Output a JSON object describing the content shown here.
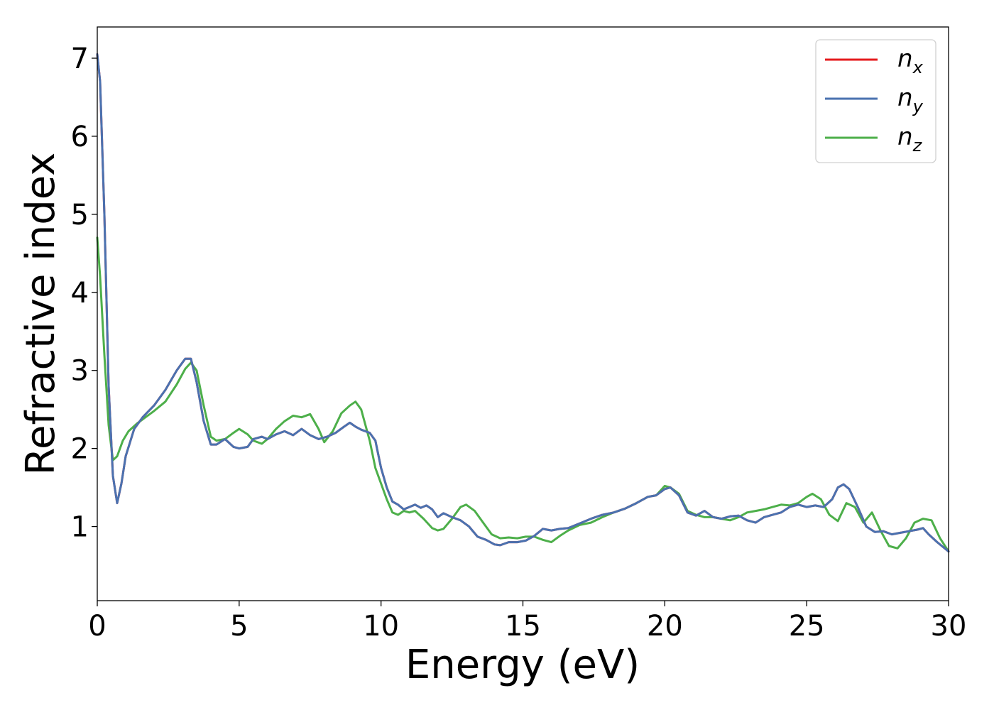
{
  "chart_data": {
    "type": "line",
    "title": "",
    "xlabel": "Energy (eV)",
    "ylabel": "Refractive index",
    "xlim": [
      0,
      30
    ],
    "ylim": [
      0.05,
      7.4
    ],
    "xticks": [
      0,
      5,
      10,
      15,
      20,
      25,
      30
    ],
    "xtick_labels": [
      "0",
      "5",
      "10",
      "15",
      "20",
      "25",
      "30"
    ],
    "yticks": [
      1,
      2,
      3,
      4,
      5,
      6,
      7
    ],
    "ytick_labels": [
      "1",
      "2",
      "3",
      "4",
      "5",
      "6",
      "7"
    ],
    "grid": false,
    "legend_position": "top-right",
    "series": [
      {
        "name": "n",
        "subscript": "x",
        "color": "#e41a1c",
        "x": [
          0,
          0.1,
          0.25,
          0.4,
          0.55,
          0.7,
          0.85,
          1.0,
          1.3,
          1.6,
          2.0,
          2.4,
          2.8,
          3.1,
          3.3,
          3.5,
          3.75,
          4.0,
          4.2,
          4.5,
          4.8,
          5.0,
          5.3,
          5.5,
          5.8,
          6.0,
          6.3,
          6.6,
          6.9,
          7.2,
          7.5,
          7.8,
          8.1,
          8.4,
          8.7,
          8.9,
          9.1,
          9.3,
          9.6,
          9.8,
          10.0,
          10.2,
          10.4,
          10.6,
          10.8,
          11.0,
          11.2,
          11.4,
          11.6,
          11.8,
          12.0,
          12.2,
          12.5,
          12.8,
          13.1,
          13.4,
          13.7,
          14.0,
          14.2,
          14.5,
          14.8,
          15.1,
          15.4,
          15.7,
          16.0,
          16.3,
          16.6,
          17.0,
          17.4,
          17.8,
          18.2,
          18.6,
          19.0,
          19.4,
          19.7,
          20.0,
          20.2,
          20.5,
          20.8,
          21.1,
          21.4,
          21.7,
          22.0,
          22.3,
          22.6,
          22.9,
          23.2,
          23.5,
          23.8,
          24.1,
          24.4,
          24.7,
          25.0,
          25.3,
          25.6,
          25.9,
          26.1,
          26.3,
          26.5,
          26.8,
          27.1,
          27.4,
          27.7,
          28.0,
          28.3,
          28.6,
          28.9,
          29.1,
          29.3,
          29.6,
          30.0
        ],
        "y": [
          7.05,
          6.7,
          5.0,
          2.8,
          1.65,
          1.3,
          1.55,
          1.9,
          2.25,
          2.4,
          2.55,
          2.75,
          3.0,
          3.15,
          3.15,
          2.85,
          2.35,
          2.05,
          2.05,
          2.12,
          2.02,
          2.0,
          2.02,
          2.12,
          2.15,
          2.12,
          2.18,
          2.22,
          2.17,
          2.25,
          2.17,
          2.12,
          2.15,
          2.2,
          2.28,
          2.33,
          2.28,
          2.24,
          2.2,
          2.1,
          1.75,
          1.5,
          1.32,
          1.28,
          1.22,
          1.25,
          1.28,
          1.24,
          1.27,
          1.22,
          1.12,
          1.17,
          1.12,
          1.08,
          1.0,
          0.87,
          0.83,
          0.77,
          0.76,
          0.8,
          0.8,
          0.82,
          0.88,
          0.97,
          0.95,
          0.97,
          0.98,
          1.04,
          1.1,
          1.15,
          1.18,
          1.23,
          1.3,
          1.38,
          1.4,
          1.48,
          1.5,
          1.4,
          1.18,
          1.14,
          1.2,
          1.12,
          1.1,
          1.13,
          1.14,
          1.08,
          1.05,
          1.12,
          1.15,
          1.18,
          1.25,
          1.28,
          1.25,
          1.27,
          1.25,
          1.35,
          1.5,
          1.54,
          1.48,
          1.25,
          1.0,
          0.93,
          0.94,
          0.9,
          0.92,
          0.94,
          0.96,
          0.98,
          0.9,
          0.8,
          0.68
        ]
      },
      {
        "name": "n",
        "subscript": "y",
        "color": "#4a72b0",
        "x": [
          0,
          0.1,
          0.25,
          0.4,
          0.55,
          0.7,
          0.85,
          1.0,
          1.3,
          1.6,
          2.0,
          2.4,
          2.8,
          3.1,
          3.3,
          3.5,
          3.75,
          4.0,
          4.2,
          4.5,
          4.8,
          5.0,
          5.3,
          5.5,
          5.8,
          6.0,
          6.3,
          6.6,
          6.9,
          7.2,
          7.5,
          7.8,
          8.1,
          8.4,
          8.7,
          8.9,
          9.1,
          9.3,
          9.6,
          9.8,
          10.0,
          10.2,
          10.4,
          10.6,
          10.8,
          11.0,
          11.2,
          11.4,
          11.6,
          11.8,
          12.0,
          12.2,
          12.5,
          12.8,
          13.1,
          13.4,
          13.7,
          14.0,
          14.2,
          14.5,
          14.8,
          15.1,
          15.4,
          15.7,
          16.0,
          16.3,
          16.6,
          17.0,
          17.4,
          17.8,
          18.2,
          18.6,
          19.0,
          19.4,
          19.7,
          20.0,
          20.2,
          20.5,
          20.8,
          21.1,
          21.4,
          21.7,
          22.0,
          22.3,
          22.6,
          22.9,
          23.2,
          23.5,
          23.8,
          24.1,
          24.4,
          24.7,
          25.0,
          25.3,
          25.6,
          25.9,
          26.1,
          26.3,
          26.5,
          26.8,
          27.1,
          27.4,
          27.7,
          28.0,
          28.3,
          28.6,
          28.9,
          29.1,
          29.3,
          29.6,
          30.0
        ],
        "y": [
          7.05,
          6.7,
          5.0,
          2.8,
          1.65,
          1.3,
          1.55,
          1.9,
          2.25,
          2.4,
          2.55,
          2.75,
          3.0,
          3.15,
          3.15,
          2.85,
          2.35,
          2.05,
          2.05,
          2.12,
          2.02,
          2.0,
          2.02,
          2.12,
          2.15,
          2.12,
          2.18,
          2.22,
          2.17,
          2.25,
          2.17,
          2.12,
          2.15,
          2.2,
          2.28,
          2.33,
          2.28,
          2.24,
          2.2,
          2.1,
          1.75,
          1.5,
          1.32,
          1.28,
          1.22,
          1.25,
          1.28,
          1.24,
          1.27,
          1.22,
          1.12,
          1.17,
          1.12,
          1.08,
          1.0,
          0.87,
          0.83,
          0.77,
          0.76,
          0.8,
          0.8,
          0.82,
          0.88,
          0.97,
          0.95,
          0.97,
          0.98,
          1.04,
          1.1,
          1.15,
          1.18,
          1.23,
          1.3,
          1.38,
          1.4,
          1.48,
          1.5,
          1.4,
          1.18,
          1.14,
          1.2,
          1.12,
          1.1,
          1.13,
          1.14,
          1.08,
          1.05,
          1.12,
          1.15,
          1.18,
          1.25,
          1.28,
          1.25,
          1.27,
          1.25,
          1.35,
          1.5,
          1.54,
          1.48,
          1.25,
          1.0,
          0.93,
          0.94,
          0.9,
          0.92,
          0.94,
          0.96,
          0.98,
          0.9,
          0.8,
          0.68
        ]
      },
      {
        "name": "n",
        "subscript": "z",
        "color": "#4daf4a",
        "x": [
          0,
          0.1,
          0.25,
          0.4,
          0.55,
          0.7,
          0.9,
          1.1,
          1.4,
          1.7,
          2.0,
          2.4,
          2.8,
          3.1,
          3.3,
          3.5,
          3.75,
          4.0,
          4.2,
          4.5,
          4.8,
          5.0,
          5.3,
          5.5,
          5.8,
          6.0,
          6.3,
          6.6,
          6.9,
          7.2,
          7.5,
          7.8,
          8.0,
          8.3,
          8.6,
          8.9,
          9.1,
          9.3,
          9.6,
          9.8,
          10.0,
          10.2,
          10.4,
          10.6,
          10.8,
          11.0,
          11.2,
          11.5,
          11.8,
          12.0,
          12.2,
          12.5,
          12.8,
          13.0,
          13.3,
          13.6,
          13.9,
          14.2,
          14.5,
          14.8,
          15.1,
          15.4,
          15.7,
          16.0,
          16.3,
          16.6,
          17.0,
          17.4,
          17.8,
          18.2,
          18.6,
          19.0,
          19.4,
          19.7,
          20.0,
          20.2,
          20.5,
          20.8,
          21.1,
          21.4,
          21.7,
          22.0,
          22.3,
          22.6,
          22.9,
          23.2,
          23.5,
          23.8,
          24.1,
          24.4,
          24.7,
          25.0,
          25.2,
          25.5,
          25.8,
          26.1,
          26.4,
          26.7,
          27.0,
          27.3,
          27.6,
          27.9,
          28.2,
          28.5,
          28.8,
          29.1,
          29.4,
          29.7,
          30.0
        ],
        "y": [
          4.7,
          4.2,
          3.2,
          2.3,
          1.85,
          1.9,
          2.1,
          2.22,
          2.32,
          2.4,
          2.48,
          2.6,
          2.82,
          3.02,
          3.1,
          3.0,
          2.55,
          2.15,
          2.1,
          2.12,
          2.2,
          2.25,
          2.18,
          2.1,
          2.06,
          2.12,
          2.25,
          2.35,
          2.42,
          2.4,
          2.44,
          2.25,
          2.08,
          2.22,
          2.45,
          2.55,
          2.6,
          2.5,
          2.1,
          1.75,
          1.55,
          1.35,
          1.18,
          1.15,
          1.2,
          1.18,
          1.2,
          1.1,
          0.98,
          0.95,
          0.97,
          1.1,
          1.25,
          1.28,
          1.2,
          1.05,
          0.9,
          0.85,
          0.86,
          0.85,
          0.87,
          0.87,
          0.83,
          0.8,
          0.88,
          0.95,
          1.02,
          1.05,
          1.12,
          1.18,
          1.23,
          1.3,
          1.38,
          1.4,
          1.52,
          1.5,
          1.42,
          1.2,
          1.15,
          1.12,
          1.12,
          1.1,
          1.08,
          1.12,
          1.18,
          1.2,
          1.22,
          1.25,
          1.28,
          1.27,
          1.3,
          1.38,
          1.42,
          1.35,
          1.15,
          1.07,
          1.3,
          1.25,
          1.05,
          1.18,
          0.95,
          0.75,
          0.72,
          0.85,
          1.05,
          1.1,
          1.08,
          0.85,
          0.68
        ]
      }
    ]
  }
}
